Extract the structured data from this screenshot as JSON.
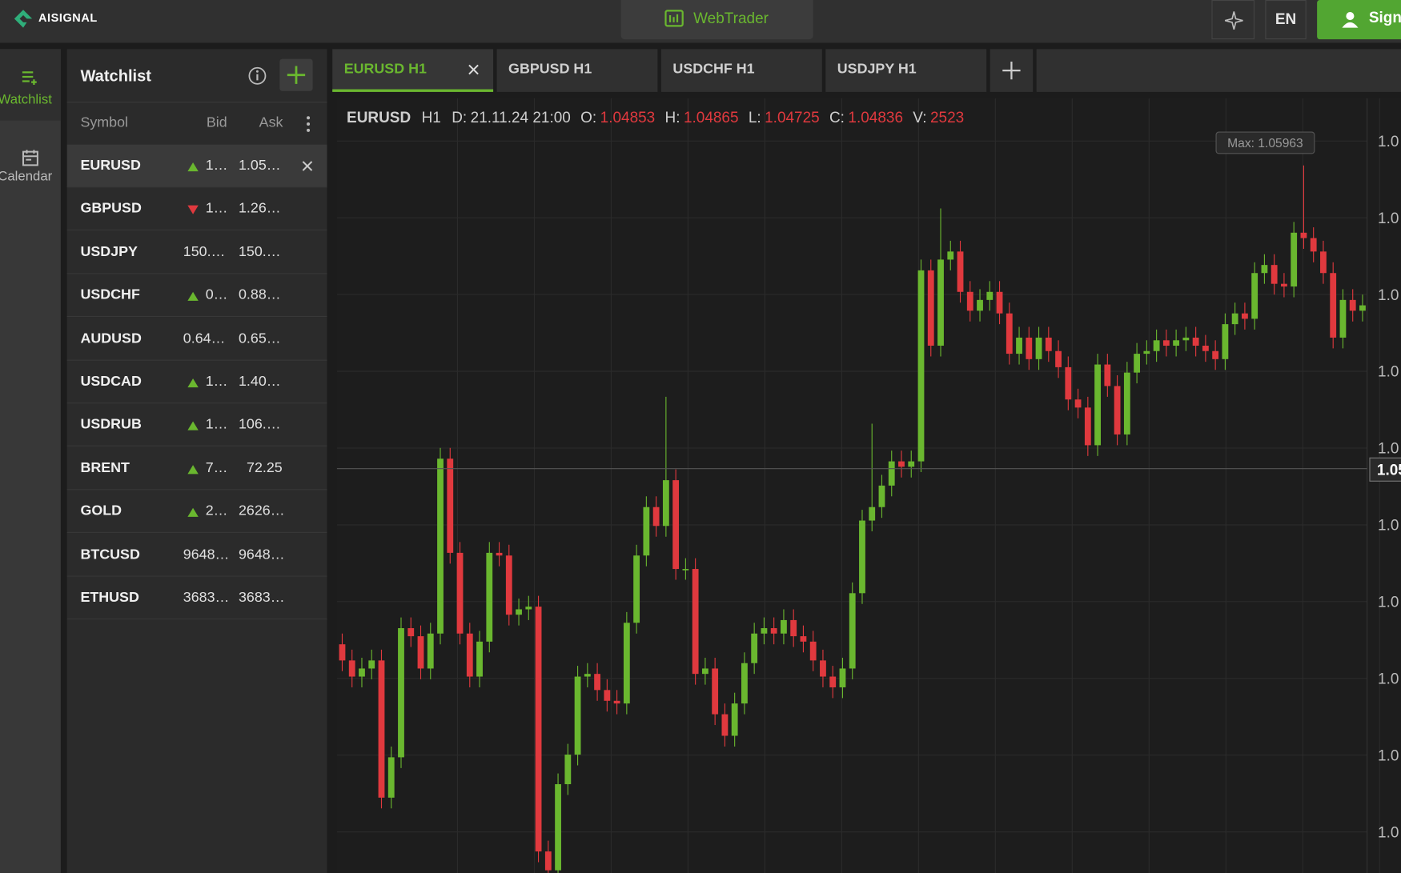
{
  "header": {
    "logo": "AISIGNAL",
    "center_button": "WebTrader",
    "language": "EN",
    "sign_in": "Sign"
  },
  "sidebar": [
    {
      "label": "Watchlist",
      "active": true
    },
    {
      "label": "Calendar"
    }
  ],
  "watchlist": {
    "title": "Watchlist",
    "columns": [
      "Symbol",
      "Bid",
      "Ask"
    ],
    "rows": [
      {
        "symbol": "EURUSD",
        "trend": "up",
        "bid": "1…",
        "ask": "1.05…",
        "selected": true
      },
      {
        "symbol": "GBPUSD",
        "trend": "down",
        "bid": "1…",
        "ask": "1.26…"
      },
      {
        "symbol": "USDJPY",
        "bid": "150.…",
        "ask": "150.…"
      },
      {
        "symbol": "USDCHF",
        "trend": "up",
        "bid": "0…",
        "ask": "0.88…"
      },
      {
        "symbol": "AUDUSD",
        "bid": "0.64…",
        "ask": "0.65…"
      },
      {
        "symbol": "USDCAD",
        "trend": "up",
        "bid": "1…",
        "ask": "1.40…"
      },
      {
        "symbol": "USDRUB",
        "trend": "up",
        "bid": "1…",
        "ask": "106.…"
      },
      {
        "symbol": "BRENT",
        "trend": "up",
        "bid": "7…",
        "ask": "72.25"
      },
      {
        "symbol": "GOLD",
        "trend": "up",
        "bid": "2…",
        "ask": "2626…"
      },
      {
        "symbol": "BTCUSD",
        "bid": "9648…",
        "ask": "9648…"
      },
      {
        "symbol": "ETHUSD",
        "bid": "3683…",
        "ask": "3683…"
      }
    ]
  },
  "tabs": [
    {
      "label": "EURUSD H1",
      "active": true
    },
    {
      "label": "GBPUSD H1"
    },
    {
      "label": "USDCHF H1"
    },
    {
      "label": "USDJPY H1"
    }
  ],
  "chart_data": {
    "type": "candlestick",
    "symbol": "EURUSD",
    "timeframe": "H1",
    "info": [
      {
        "label": "D:",
        "value": "21.11.24 21:00"
      },
      {
        "label": "O:",
        "value": "1.04853"
      },
      {
        "label": "H:",
        "value": "1.04865"
      },
      {
        "label": "L:",
        "value": "1.04725"
      },
      {
        "label": "C:",
        "value": "1.04836"
      },
      {
        "label": "V:",
        "value": "2523"
      }
    ],
    "max_label": "Max: 1.05963",
    "current_label": "1.05",
    "axis_labels": [
      "1.0",
      "1.0",
      "1.0",
      "1.0",
      "1.0",
      "1.0",
      "1.0",
      "1.0",
      "1.0",
      "1.0"
    ],
    "up_color": "#6ab72f",
    "down_color": "#e0393e",
    "grid": true,
    "ylim": [
      1.0333,
      1.0621
    ],
    "candles": [
      [
        1.0418,
        1.0422,
        1.0408,
        1.0412
      ],
      [
        1.0412,
        1.0416,
        1.0402,
        1.0406
      ],
      [
        1.0406,
        1.0413,
        1.0402,
        1.0409
      ],
      [
        1.0409,
        1.0416,
        1.0405,
        1.0412
      ],
      [
        1.0412,
        1.0416,
        1.0357,
        1.0361
      ],
      [
        1.0361,
        1.038,
        1.0357,
        1.0376
      ],
      [
        1.0376,
        1.0428,
        1.0372,
        1.0424
      ],
      [
        1.0424,
        1.0428,
        1.0417,
        1.0421
      ],
      [
        1.0421,
        1.0425,
        1.0405,
        1.0409
      ],
      [
        1.0409,
        1.0426,
        1.0405,
        1.0422
      ],
      [
        1.0422,
        1.0491,
        1.0418,
        1.0487
      ],
      [
        1.0487,
        1.0491,
        1.0448,
        1.0452
      ],
      [
        1.0452,
        1.0456,
        1.0418,
        1.0422
      ],
      [
        1.0422,
        1.0426,
        1.0402,
        1.0406
      ],
      [
        1.0406,
        1.0423,
        1.0402,
        1.0419
      ],
      [
        1.0419,
        1.0456,
        1.0415,
        1.0452
      ],
      [
        1.0452,
        1.0456,
        1.0447,
        1.0451
      ],
      [
        1.0451,
        1.0455,
        1.0425,
        1.0429
      ],
      [
        1.0429,
        1.0435,
        1.0425,
        1.0431
      ],
      [
        1.0431,
        1.0436,
        1.0427,
        1.0432
      ],
      [
        1.0432,
        1.0436,
        1.0337,
        1.0341
      ],
      [
        1.0341,
        1.0345,
        1.0333,
        1.0334
      ],
      [
        1.0334,
        1.037,
        1.0333,
        1.0366
      ],
      [
        1.0366,
        1.0381,
        1.0362,
        1.0377
      ],
      [
        1.0377,
        1.041,
        1.0373,
        1.0406
      ],
      [
        1.0406,
        1.0411,
        1.0402,
        1.0407
      ],
      [
        1.0407,
        1.0411,
        1.0397,
        1.0401
      ],
      [
        1.0401,
        1.0405,
        1.0393,
        1.0397
      ],
      [
        1.0397,
        1.0401,
        1.0392,
        1.0396
      ],
      [
        1.0396,
        1.043,
        1.0392,
        1.0426
      ],
      [
        1.0426,
        1.0455,
        1.0422,
        1.0451
      ],
      [
        1.0451,
        1.0473,
        1.0447,
        1.0469
      ],
      [
        1.0469,
        1.0473,
        1.0458,
        1.0462
      ],
      [
        1.0462,
        1.051,
        1.0458,
        1.0479
      ],
      [
        1.0479,
        1.0483,
        1.0442,
        1.0446
      ],
      [
        1.0446,
        1.045,
        1.0442,
        1.0446
      ],
      [
        1.0446,
        1.045,
        1.0403,
        1.0407
      ],
      [
        1.0407,
        1.0413,
        1.0403,
        1.0409
      ],
      [
        1.0409,
        1.0413,
        1.0388,
        1.0392
      ],
      [
        1.0392,
        1.0396,
        1.038,
        1.0384
      ],
      [
        1.0384,
        1.04,
        1.038,
        1.0396
      ],
      [
        1.0396,
        1.0415,
        1.0392,
        1.0411
      ],
      [
        1.0411,
        1.0426,
        1.0407,
        1.0422
      ],
      [
        1.0422,
        1.0428,
        1.0418,
        1.0424
      ],
      [
        1.0424,
        1.0428,
        1.0418,
        1.0422
      ],
      [
        1.0422,
        1.0431,
        1.0418,
        1.0427
      ],
      [
        1.0427,
        1.0431,
        1.0417,
        1.0421
      ],
      [
        1.0421,
        1.0425,
        1.0415,
        1.0419
      ],
      [
        1.0419,
        1.0423,
        1.0408,
        1.0412
      ],
      [
        1.0412,
        1.0416,
        1.0402,
        1.0406
      ],
      [
        1.0406,
        1.041,
        1.0398,
        1.0402
      ],
      [
        1.0402,
        1.0413,
        1.0398,
        1.0409
      ],
      [
        1.0409,
        1.0441,
        1.0405,
        1.0437
      ],
      [
        1.0437,
        1.0468,
        1.0433,
        1.0464
      ],
      [
        1.0464,
        1.05,
        1.046,
        1.0469
      ],
      [
        1.0469,
        1.0481,
        1.0465,
        1.0477
      ],
      [
        1.0477,
        1.049,
        1.0473,
        1.0486
      ],
      [
        1.0486,
        1.049,
        1.048,
        1.0484
      ],
      [
        1.0484,
        1.049,
        1.048,
        1.0486
      ],
      [
        1.0486,
        1.0561,
        1.0482,
        1.0557
      ],
      [
        1.0557,
        1.0561,
        1.0525,
        1.0529
      ],
      [
        1.0529,
        1.058,
        1.0525,
        1.0561
      ],
      [
        1.0561,
        1.0568,
        1.0557,
        1.0564
      ],
      [
        1.0564,
        1.0568,
        1.0545,
        1.0549
      ],
      [
        1.0549,
        1.0553,
        1.0538,
        1.0542
      ],
      [
        1.0542,
        1.055,
        1.0538,
        1.0546
      ],
      [
        1.0546,
        1.0553,
        1.0542,
        1.0549
      ],
      [
        1.0549,
        1.0553,
        1.0537,
        1.0541
      ],
      [
        1.0541,
        1.0545,
        1.0522,
        1.0526
      ],
      [
        1.0526,
        1.0536,
        1.0522,
        1.0532
      ],
      [
        1.0532,
        1.0536,
        1.052,
        1.0524
      ],
      [
        1.0524,
        1.0536,
        1.052,
        1.0532
      ],
      [
        1.0532,
        1.0536,
        1.0523,
        1.0527
      ],
      [
        1.0527,
        1.0531,
        1.0517,
        1.0521
      ],
      [
        1.0521,
        1.0525,
        1.0505,
        1.0509
      ],
      [
        1.0509,
        1.0513,
        1.0502,
        1.0506
      ],
      [
        1.0506,
        1.051,
        1.0488,
        1.0492
      ],
      [
        1.0492,
        1.0526,
        1.0488,
        1.0522
      ],
      [
        1.0522,
        1.0526,
        1.051,
        1.0514
      ],
      [
        1.0514,
        1.0518,
        1.0492,
        1.0496
      ],
      [
        1.0496,
        1.0523,
        1.0492,
        1.0519
      ],
      [
        1.0519,
        1.053,
        1.0515,
        1.0526
      ],
      [
        1.0526,
        1.0531,
        1.0522,
        1.0527
      ],
      [
        1.0527,
        1.0535,
        1.0523,
        1.0531
      ],
      [
        1.0531,
        1.0535,
        1.0525,
        1.0529
      ],
      [
        1.0529,
        1.0535,
        1.0525,
        1.0531
      ],
      [
        1.0531,
        1.0536,
        1.0527,
        1.0532
      ],
      [
        1.0532,
        1.0536,
        1.0525,
        1.0529
      ],
      [
        1.0529,
        1.0533,
        1.0523,
        1.0527
      ],
      [
        1.0527,
        1.0531,
        1.052,
        1.0524
      ],
      [
        1.0524,
        1.0541,
        1.052,
        1.0537
      ],
      [
        1.0537,
        1.0545,
        1.0533,
        1.0541
      ],
      [
        1.0541,
        1.0545,
        1.0535,
        1.0539
      ],
      [
        1.0539,
        1.056,
        1.0535,
        1.0556
      ],
      [
        1.0556,
        1.0563,
        1.0552,
        1.0559
      ],
      [
        1.0559,
        1.0563,
        1.0548,
        1.0552
      ],
      [
        1.0552,
        1.0556,
        1.0547,
        1.0551
      ],
      [
        1.0551,
        1.0575,
        1.0547,
        1.0571
      ],
      [
        1.0571,
        1.0596,
        1.0565,
        1.0569
      ],
      [
        1.0569,
        1.0573,
        1.056,
        1.0564
      ],
      [
        1.0564,
        1.0568,
        1.0552,
        1.0556
      ],
      [
        1.0556,
        1.056,
        1.0528,
        1.0532
      ],
      [
        1.0532,
        1.055,
        1.0528,
        1.0546
      ],
      [
        1.0546,
        1.055,
        1.0538,
        1.0542
      ],
      [
        1.0542,
        1.0548,
        1.0538,
        1.0544
      ]
    ]
  }
}
